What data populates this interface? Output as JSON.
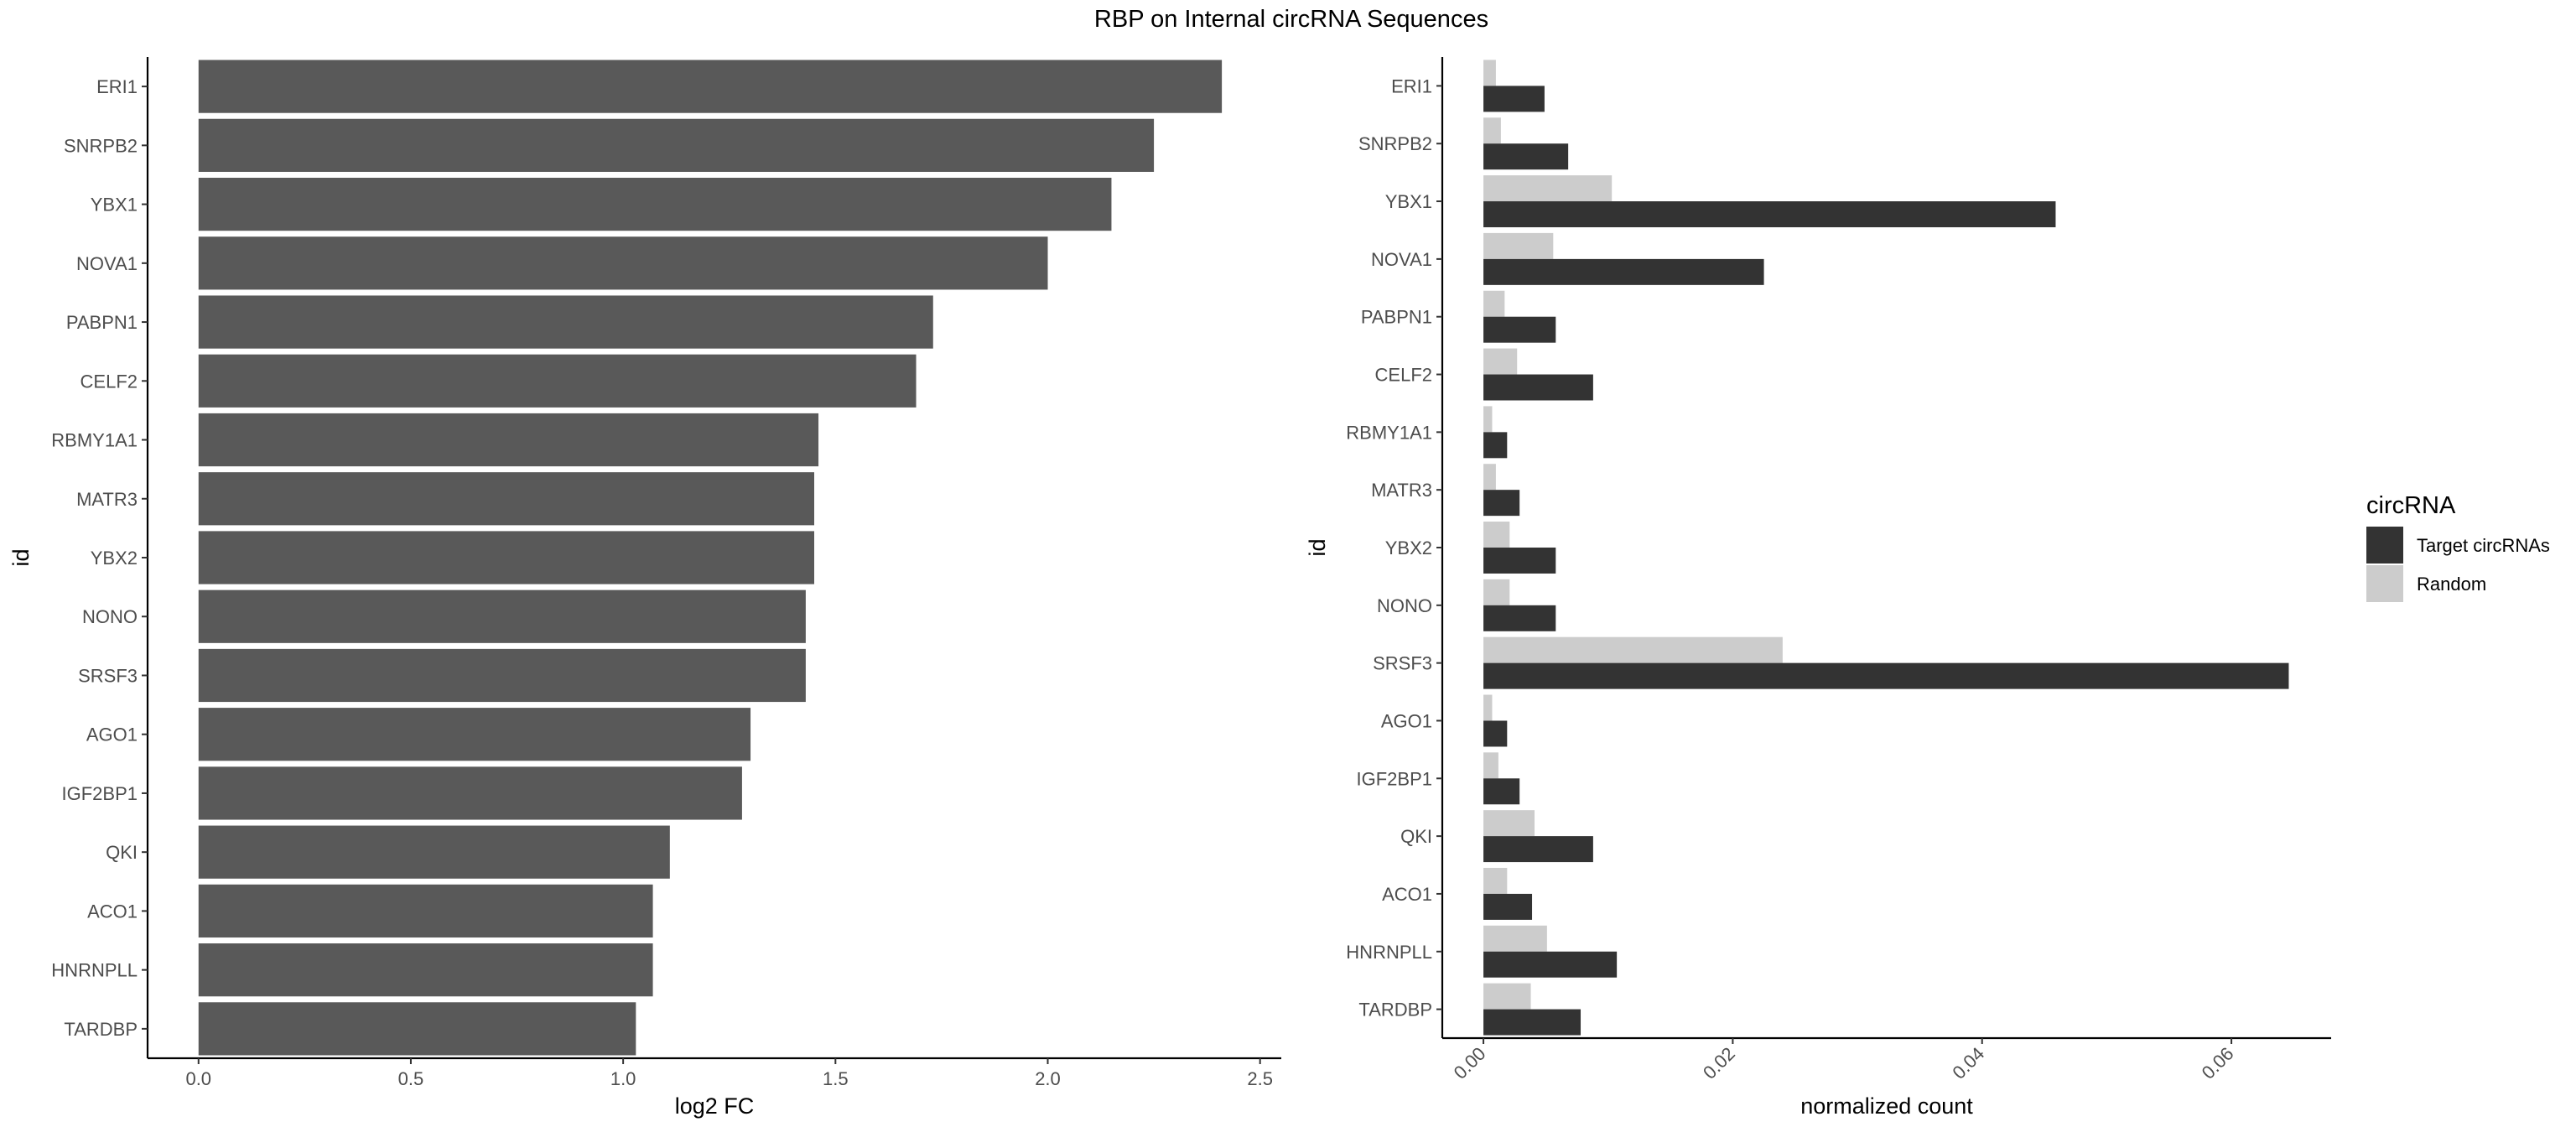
{
  "title": "RBP on Internal circRNA Sequences",
  "chart_data": [
    {
      "type": "bar",
      "orientation": "horizontal",
      "xlabel": "log2 FC",
      "ylabel": "id",
      "xlim": [
        -0.12,
        2.55
      ],
      "xticks": [
        "0.0",
        "0.5",
        "1.0",
        "1.5",
        "2.0",
        "2.5"
      ],
      "grid": false,
      "bar_color": "#595959",
      "categories": [
        "ERI1",
        "SNRPB2",
        "YBX1",
        "NOVA1",
        "PABPN1",
        "CELF2",
        "RBMY1A1",
        "MATR3",
        "YBX2",
        "NONO",
        "SRSF3",
        "AGO1",
        "IGF2BP1",
        "QKI",
        "ACO1",
        "HNRNPLL",
        "TARDBP"
      ],
      "values": [
        2.41,
        2.25,
        2.15,
        2.0,
        1.73,
        1.69,
        1.46,
        1.45,
        1.45,
        1.43,
        1.43,
        1.3,
        1.28,
        1.11,
        1.07,
        1.07,
        1.03
      ]
    },
    {
      "type": "bar",
      "orientation": "horizontal",
      "grouped": true,
      "xlabel": "normalized count",
      "ylabel": "id",
      "xlim": [
        -0.0033,
        0.068
      ],
      "xticks": [
        "0.00",
        "0.02",
        "0.04",
        "0.06"
      ],
      "grid": false,
      "legend": {
        "title": "circRNA",
        "position": "right"
      },
      "categories": [
        "ERI1",
        "SNRPB2",
        "YBX1",
        "NOVA1",
        "PABPN1",
        "CELF2",
        "RBMY1A1",
        "MATR3",
        "YBX2",
        "NONO",
        "SRSF3",
        "AGO1",
        "IGF2BP1",
        "QKI",
        "ACO1",
        "HNRNPLL",
        "TARDBP"
      ],
      "series": [
        {
          "name": "Target circRNAs",
          "color": "#333333",
          "values": [
            0.0049,
            0.0068,
            0.0459,
            0.0225,
            0.0058,
            0.0088,
            0.0019,
            0.0029,
            0.0058,
            0.0058,
            0.0646,
            0.0019,
            0.0029,
            0.0088,
            0.0039,
            0.0107,
            0.0078
          ]
        },
        {
          "name": "Random",
          "color": "#cccccc",
          "values": [
            0.001,
            0.0014,
            0.0103,
            0.0056,
            0.0017,
            0.0027,
            0.0007,
            0.001,
            0.0021,
            0.0021,
            0.024,
            0.0007,
            0.0012,
            0.0041,
            0.0019,
            0.0051,
            0.0038
          ]
        }
      ]
    }
  ]
}
